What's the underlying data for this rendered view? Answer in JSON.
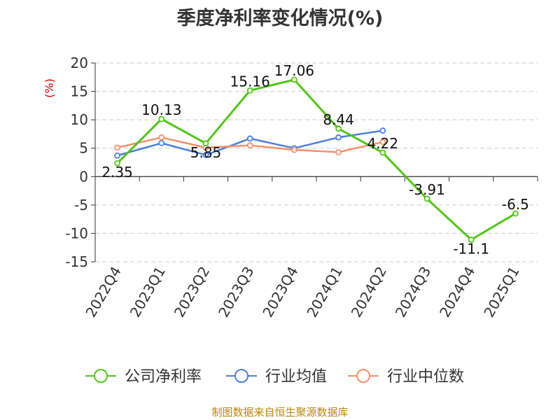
{
  "chart_data": {
    "type": "line",
    "title": "季度净利率变化情况(%)",
    "ylabel": "(%)",
    "xlabel": "",
    "categories": [
      "2022Q4",
      "2023Q1",
      "2023Q2",
      "2023Q3",
      "2023Q4",
      "2024Q1",
      "2024Q2",
      "2024Q3",
      "2024Q4",
      "2025Q1"
    ],
    "yticks": [
      "20",
      "15",
      "10",
      "5",
      "0",
      "-5",
      "-10",
      "-15"
    ],
    "ylim": [
      -15,
      20
    ],
    "grid": "horizontal-dashed",
    "legend_position": "bottom",
    "series": [
      {
        "name": "公司净利率",
        "color": "#52c41a",
        "values": [
          2.35,
          10.13,
          5.85,
          15.16,
          17.06,
          8.44,
          4.22,
          -3.91,
          -11.1,
          -6.5
        ],
        "labels": [
          "2.35",
          "10.13",
          "5.85",
          "15.16",
          "17.06",
          "8.44",
          "4.22",
          "-3.91",
          "-11.1",
          "-6.5"
        ]
      },
      {
        "name": "行业均值",
        "color": "#4a7fdc",
        "values": [
          3.7,
          5.9,
          3.8,
          6.7,
          5.0,
          6.9,
          8.1,
          null,
          null,
          null
        ]
      },
      {
        "name": "行业中位数",
        "color": "#f59066",
        "values": [
          5.1,
          6.9,
          5.1,
          5.5,
          4.7,
          4.3,
          6.1,
          null,
          null,
          null
        ]
      }
    ]
  },
  "source": "制图数据来自恒生聚源数据库"
}
